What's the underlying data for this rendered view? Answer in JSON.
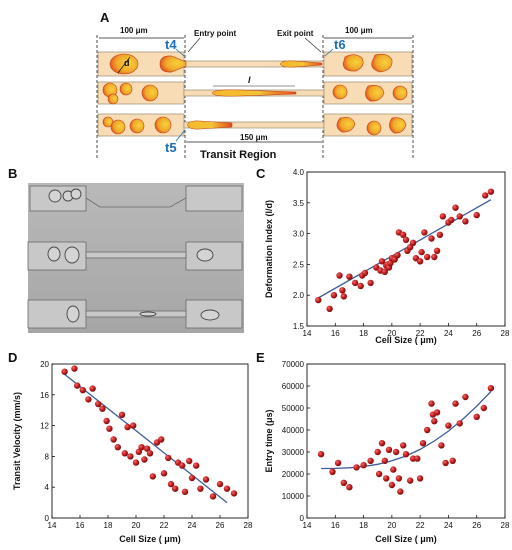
{
  "panel_a": {
    "label": "A",
    "width_left": "100 μm",
    "width_right": "100 μm",
    "entry_point": "Entry point",
    "exit_point": "Exit point",
    "t4": "t4",
    "t5": "t5",
    "t6": "t6",
    "d": "d",
    "l": "l",
    "transit_width": "150 μm",
    "transit_region": "Transit Region"
  },
  "panel_b": {
    "label": "B"
  },
  "chart_data": [
    {
      "panel": "C",
      "type": "scatter",
      "xlabel": "Cell Size ( μm)",
      "ylabel": "Deformation Index (l/d)",
      "xlim": [
        14,
        28
      ],
      "ylim": [
        1.5,
        4.0
      ],
      "xticks": [
        "14",
        "16",
        "18",
        "20",
        "22",
        "24",
        "26",
        "28"
      ],
      "yticks": [
        "1.5",
        "2.0",
        "2.5",
        "3.0",
        "3.5",
        "4.0"
      ],
      "x": [
        14.8,
        15.6,
        15.9,
        16.3,
        16.5,
        16.6,
        17.0,
        17.4,
        17.8,
        17.9,
        18.1,
        18.5,
        18.9,
        19.2,
        19.3,
        19.5,
        19.6,
        19.7,
        19.8,
        19.9,
        20.0,
        20.2,
        20.4,
        20.5,
        20.8,
        21.0,
        21.1,
        21.3,
        21.5,
        21.7,
        22.0,
        22.1,
        22.3,
        22.5,
        22.8,
        23.0,
        23.2,
        23.4,
        23.6,
        24.0,
        24.2,
        24.5,
        24.8,
        25.2,
        26.0,
        26.6,
        27.0
      ],
      "y": [
        1.92,
        1.78,
        2.0,
        2.32,
        2.08,
        1.98,
        2.3,
        2.2,
        2.15,
        2.32,
        2.36,
        2.2,
        2.45,
        2.4,
        2.55,
        2.38,
        2.48,
        2.5,
        2.45,
        2.52,
        2.6,
        2.58,
        2.65,
        3.02,
        2.98,
        2.9,
        2.72,
        2.78,
        2.85,
        2.6,
        2.55,
        2.7,
        3.02,
        2.62,
        2.92,
        2.62,
        2.72,
        2.98,
        3.28,
        3.18,
        3.22,
        3.42,
        3.28,
        3.2,
        3.3,
        3.62,
        3.68
      ],
      "fit": {
        "type": "linear",
        "x": [
          14.6,
          27.0
        ],
        "y": [
          1.93,
          3.55
        ]
      }
    },
    {
      "panel": "D",
      "type": "scatter",
      "xlabel": "Cell Size ( μm)",
      "ylabel": "Transit Velocity (mm/s)",
      "xlim": [
        14,
        28
      ],
      "ylim": [
        0,
        20
      ],
      "xticks": [
        "14",
        "16",
        "18",
        "20",
        "22",
        "24",
        "26",
        "28"
      ],
      "yticks": [
        "0",
        "4",
        "8",
        "12",
        "16",
        "20"
      ],
      "x": [
        14.9,
        15.6,
        15.8,
        16.2,
        16.6,
        16.9,
        17.3,
        17.6,
        17.9,
        18.1,
        18.4,
        18.7,
        19.0,
        19.2,
        19.4,
        19.6,
        19.8,
        20.0,
        20.2,
        20.4,
        20.6,
        20.8,
        21.0,
        21.2,
        21.5,
        21.8,
        22.0,
        22.3,
        22.5,
        22.8,
        23.0,
        23.3,
        23.5,
        23.8,
        24.0,
        24.3,
        24.6,
        25.0,
        25.5,
        26.0,
        26.5,
        27.0
      ],
      "y": [
        19.0,
        19.4,
        17.2,
        16.6,
        15.4,
        16.8,
        14.8,
        14.2,
        12.6,
        11.6,
        10.2,
        9.2,
        13.4,
        8.4,
        11.8,
        8.0,
        12.0,
        7.2,
        8.6,
        9.2,
        7.6,
        9.0,
        8.4,
        5.4,
        9.8,
        10.2,
        5.8,
        7.8,
        4.4,
        3.8,
        7.2,
        6.8,
        3.4,
        7.4,
        5.2,
        6.8,
        3.8,
        5.0,
        2.8,
        4.4,
        3.8,
        3.2
      ],
      "fit": {
        "type": "linear",
        "x": [
          14.8,
          26.5
        ],
        "y": [
          18.8,
          2.0
        ]
      }
    },
    {
      "panel": "E",
      "type": "scatter",
      "xlabel": "Cell Size ( μm)",
      "ylabel": "Entry time (μs)",
      "xlim": [
        14,
        28
      ],
      "ylim": [
        0,
        70000
      ],
      "xticks": [
        "14",
        "16",
        "18",
        "20",
        "22",
        "24",
        "26",
        "28"
      ],
      "yticks": [
        "0",
        "10000",
        "20000",
        "30000",
        "40000",
        "50000",
        "60000",
        "70000"
      ],
      "x": [
        15.0,
        15.8,
        16.2,
        16.6,
        17.0,
        17.5,
        18.0,
        18.5,
        19.0,
        19.1,
        19.3,
        19.5,
        19.6,
        19.8,
        20.0,
        20.1,
        20.3,
        20.5,
        20.6,
        20.8,
        21.0,
        21.3,
        21.5,
        21.8,
        22.0,
        22.2,
        22.5,
        22.8,
        22.9,
        23.0,
        23.2,
        23.5,
        23.8,
        24.0,
        24.3,
        24.5,
        24.8,
        25.2,
        26.0,
        26.5,
        27.0
      ],
      "y": [
        29000,
        21000,
        25000,
        16000,
        14000,
        23000,
        24000,
        26000,
        30000,
        20000,
        34000,
        26000,
        18000,
        31000,
        15000,
        22000,
        30000,
        18000,
        12000,
        33000,
        29000,
        17000,
        27000,
        27000,
        18000,
        34000,
        40000,
        52000,
        47000,
        44000,
        48000,
        33000,
        25000,
        42000,
        26000,
        52000,
        43000,
        55000,
        46000,
        50000,
        59000
      ],
      "fit": {
        "type": "quadratic",
        "x": [
          15.0,
          16.0,
          17.0,
          18.0,
          19.0,
          20.0,
          21.0,
          22.0,
          23.0,
          24.0,
          25.0,
          26.0,
          27.0
        ],
        "y": [
          22500,
          22550,
          22800,
          23400,
          24400,
          26000,
          28200,
          31200,
          35000,
          39500,
          44800,
          50800,
          57500
        ]
      }
    }
  ],
  "colors": {
    "point": "#c62020",
    "fit": "#3b5c9a",
    "tube": "#f7dcb6",
    "cell": "#f0b52a",
    "cell_edge": "#d8421b",
    "teal": "#1a6fb5"
  }
}
